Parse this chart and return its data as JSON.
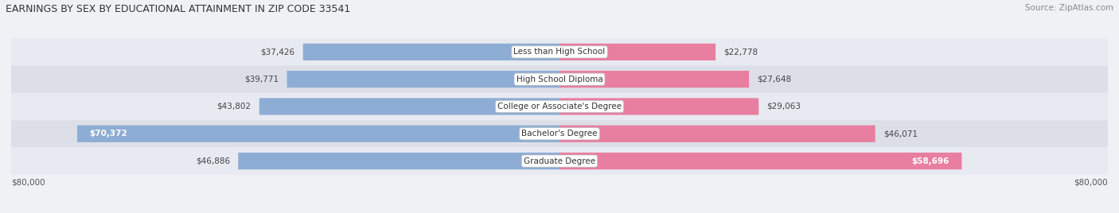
{
  "title": "EARNINGS BY SEX BY EDUCATIONAL ATTAINMENT IN ZIP CODE 33541",
  "source": "Source: ZipAtlas.com",
  "categories": [
    "Less than High School",
    "High School Diploma",
    "College or Associate's Degree",
    "Bachelor's Degree",
    "Graduate Degree"
  ],
  "male_values": [
    37426,
    39771,
    43802,
    70372,
    46886
  ],
  "female_values": [
    22778,
    27648,
    29063,
    46071,
    58696
  ],
  "male_color": "#8eadd4",
  "female_color": "#e87fa0",
  "max_val": 80000,
  "label_male_inside": [
    false,
    false,
    false,
    true,
    false
  ],
  "label_female_inside": [
    false,
    false,
    false,
    false,
    true
  ],
  "background_color": "#f0f1f5",
  "bar_height": 0.62,
  "row_bg_colors": [
    "#e8eaf2",
    "#dddfe8"
  ],
  "title_fontsize": 9,
  "source_fontsize": 7.5,
  "label_fontsize": 7.5
}
